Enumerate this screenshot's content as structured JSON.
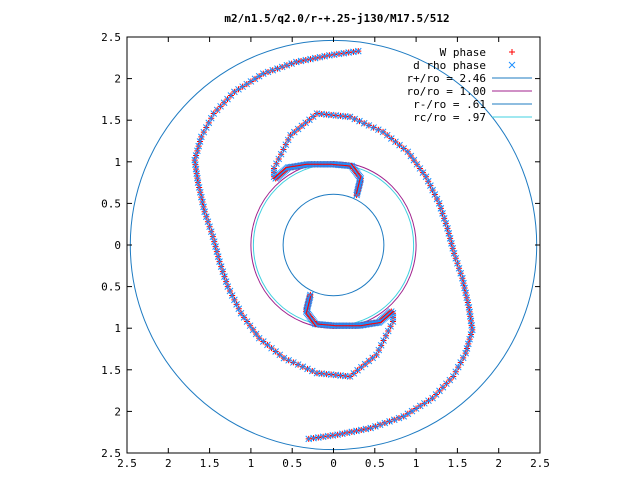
{
  "chart_data": {
    "type": "scatter",
    "title": "m2/n1.5/q2.0/r-+.25-j130/M17.5/512",
    "xlabel": "",
    "ylabel": "",
    "xlim": [
      -2.5,
      2.5
    ],
    "ylim": [
      -2.5,
      2.5
    ],
    "x_ticks": [
      -2.5,
      -2,
      -1.5,
      -1,
      -0.5,
      0,
      0.5,
      1,
      1.5,
      2,
      2.5
    ],
    "x_tick_labels": [
      "2.5",
      "2",
      "1.5",
      "1",
      "0.5",
      "0",
      "0.5",
      "1",
      "1.5",
      "2",
      "2.5"
    ],
    "y_ticks": [
      2.5,
      2,
      1.5,
      1,
      0.5,
      0,
      -0.5,
      -1,
      -1.5,
      -2,
      -2.5
    ],
    "y_tick_labels": [
      "2.5",
      "2",
      "1.5",
      "1",
      "0.5",
      "0",
      "0.5",
      "1",
      "1.5",
      "2",
      "2.5"
    ],
    "grid": false,
    "legend_position": "top-right",
    "series": [
      {
        "name": "W phase",
        "marker": "plus",
        "color": "#ff0000",
        "arms": [
          {
            "ring_radius": 2.33,
            "points": [
              [
                0.3,
                2.33
              ],
              [
                -0.05,
                2.28
              ],
              [
                -0.45,
                2.2
              ],
              [
                -0.85,
                2.06
              ],
              [
                -1.2,
                1.84
              ],
              [
                -1.45,
                1.58
              ],
              [
                -1.6,
                1.3
              ],
              [
                -1.68,
                1.02
              ],
              [
                -1.64,
                0.75
              ],
              [
                -1.56,
                0.4
              ],
              [
                -1.46,
                0.1
              ],
              [
                -1.38,
                -0.2
              ],
              [
                -1.28,
                -0.5
              ],
              [
                -1.12,
                -0.82
              ],
              [
                -0.9,
                -1.12
              ],
              [
                -0.6,
                -1.36
              ],
              [
                -0.2,
                -1.54
              ],
              [
                0.2,
                -1.58
              ],
              [
                0.52,
                -1.32
              ],
              [
                0.72,
                -0.92
              ],
              [
                0.72,
                -0.82
              ]
            ]
          },
          {
            "ring_radius": 2.33,
            "points": [
              [
                -0.3,
                -2.33
              ],
              [
                0.05,
                -2.28
              ],
              [
                0.45,
                -2.2
              ],
              [
                0.85,
                -2.06
              ],
              [
                1.2,
                -1.84
              ],
              [
                1.45,
                -1.58
              ],
              [
                1.6,
                -1.3
              ],
              [
                1.68,
                -1.02
              ],
              [
                1.64,
                -0.75
              ],
              [
                1.56,
                -0.4
              ],
              [
                1.46,
                -0.1
              ],
              [
                1.38,
                0.2
              ],
              [
                1.28,
                0.5
              ],
              [
                1.12,
                0.82
              ],
              [
                0.9,
                1.12
              ],
              [
                0.6,
                1.36
              ],
              [
                0.2,
                1.54
              ],
              [
                -0.2,
                1.58
              ],
              [
                -0.52,
                1.32
              ],
              [
                -0.72,
                0.92
              ],
              [
                -0.72,
                0.82
              ]
            ]
          },
          {
            "inner": true,
            "points": [
              [
                -0.7,
                0.8
              ],
              [
                -0.55,
                0.93
              ],
              [
                -0.3,
                0.97
              ],
              [
                0.0,
                0.97
              ],
              [
                0.22,
                0.95
              ],
              [
                0.33,
                0.8
              ],
              [
                0.28,
                0.6
              ]
            ]
          },
          {
            "inner": true,
            "points": [
              [
                0.7,
                -0.8
              ],
              [
                0.55,
                -0.93
              ],
              [
                0.3,
                -0.97
              ],
              [
                0.0,
                -0.97
              ],
              [
                -0.22,
                -0.95
              ],
              [
                -0.33,
                -0.8
              ],
              [
                -0.28,
                -0.6
              ]
            ]
          }
        ]
      },
      {
        "name": "d rho phase",
        "marker": "cross",
        "color": "#1e90ff"
      },
      {
        "name": "r+/ro = 2.46",
        "type": "circle",
        "radius": 2.46,
        "color": "#1e7bc2"
      },
      {
        "name": "ro/ro = 1.00",
        "type": "circle",
        "radius": 1.0,
        "color": "#a0208c"
      },
      {
        "name": "r-/ro = .61",
        "type": "circle",
        "radius": 0.61,
        "color": "#1e7bc2"
      },
      {
        "name": "rc/ro = .97",
        "type": "circle",
        "radius": 0.97,
        "color": "#40d0e0"
      }
    ]
  }
}
